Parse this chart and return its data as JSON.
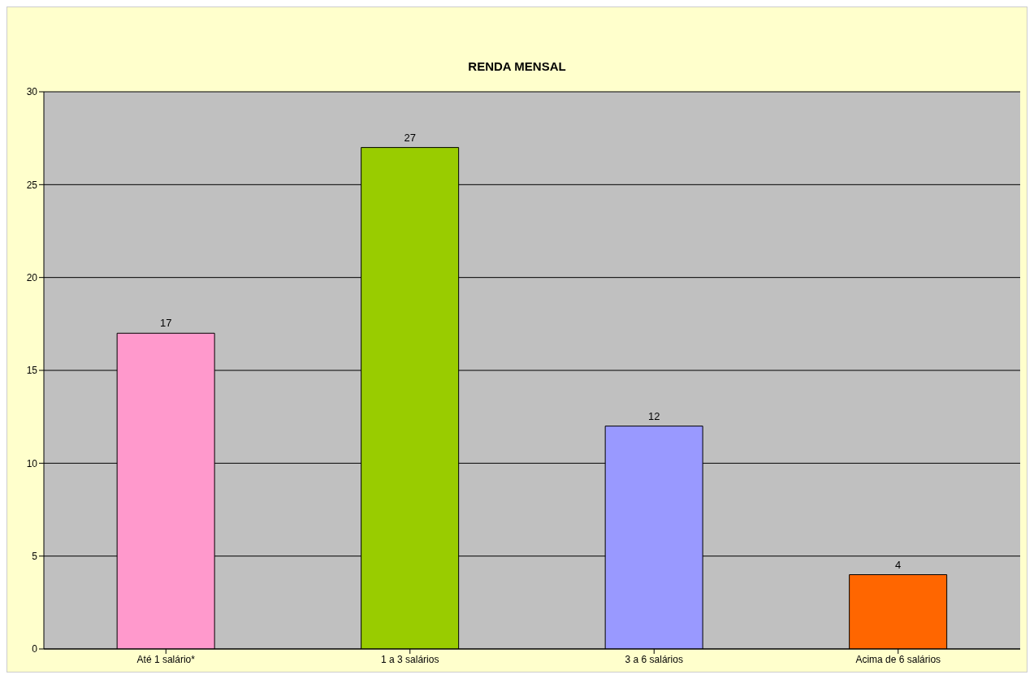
{
  "chart_data": {
    "type": "bar",
    "title": "RENDA MENSAL",
    "categories": [
      "Até 1 salário*",
      "1 a 3 salários",
      "3 a 6 salários",
      "Acima de 6 salários"
    ],
    "values": [
      17,
      27,
      12,
      4
    ],
    "colors": [
      "#ff99cc",
      "#99cc00",
      "#9999ff",
      "#ff6600"
    ],
    "ylim": [
      0,
      30
    ],
    "yticks": [
      0,
      5,
      10,
      15,
      20,
      25,
      30
    ],
    "grid": "y",
    "data_labels": true
  }
}
